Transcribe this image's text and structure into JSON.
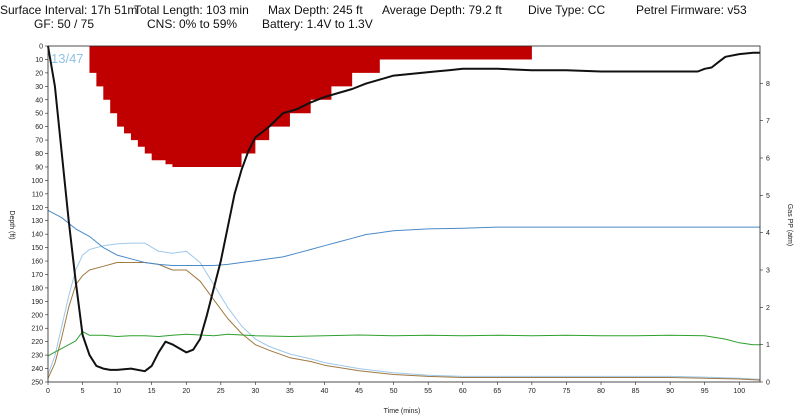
{
  "header": {
    "surface_interval": "Surface Interval: 17h 51m",
    "gf": "GF: 50 / 75",
    "total_length": "Total Length: 103 min",
    "cns": "CNS: 0% to 59%",
    "max_depth": "Max Depth: 245 ft",
    "battery": "Battery: 1.4V to 1.3V",
    "average_depth": "Average Depth: 79.2 ft",
    "dive_type": "Dive Type: CC",
    "firmware": "Petrel Firmware: v53"
  },
  "chart_data": {
    "type": "line",
    "xlabel": "Time (mins)",
    "ylabel_left": "Depth (ft)",
    "ylabel_right": "Gas PP (atm)",
    "xlim": [
      0,
      103
    ],
    "ylim_left": [
      250,
      0
    ],
    "ylim_right": [
      0,
      9
    ],
    "x_ticks": [
      0,
      5,
      10,
      15,
      20,
      25,
      30,
      35,
      40,
      45,
      50,
      55,
      60,
      65,
      70,
      75,
      80,
      85,
      90,
      95,
      100
    ],
    "y_ticks_left": [
      0,
      10,
      20,
      30,
      40,
      50,
      60,
      70,
      80,
      90,
      100,
      110,
      120,
      130,
      140,
      150,
      160,
      170,
      180,
      190,
      200,
      210,
      220,
      230,
      240,
      250
    ],
    "y_ticks_right": [
      0,
      1,
      2,
      3,
      4,
      5,
      6,
      7,
      8
    ],
    "gf_label": "13/47",
    "colors": {
      "depth": "#111111",
      "ceiling": "#c00000",
      "ppo2_blue": "#4a8ac8",
      "green": "#2ea02e",
      "brown": "#a07840",
      "lightblue": "#9ec8ea"
    },
    "series": [
      {
        "key": "depth",
        "axis": "left",
        "x": [
          0,
          1,
          2,
          3,
          4,
          5,
          6,
          7,
          8,
          9,
          10,
          12,
          14,
          15,
          16,
          17,
          18,
          19,
          20,
          21,
          22,
          23,
          24,
          25,
          26,
          27,
          28,
          29,
          30,
          31,
          32,
          33,
          34,
          36,
          38,
          40,
          42,
          44,
          46,
          48,
          50,
          52,
          54,
          56,
          58,
          60,
          65,
          70,
          75,
          80,
          85,
          90,
          94,
          95,
          96,
          97,
          98,
          100,
          102,
          103
        ],
        "y": [
          0,
          30,
          80,
          130,
          175,
          215,
          230,
          238,
          240,
          241,
          241,
          240,
          242,
          238,
          228,
          220,
          222,
          225,
          228,
          226,
          218,
          200,
          180,
          160,
          135,
          110,
          92,
          78,
          68,
          64,
          60,
          55,
          50,
          47,
          42,
          38,
          35,
          32,
          28,
          25,
          22,
          21,
          20,
          19,
          18,
          17,
          17,
          18,
          18,
          19,
          19,
          19,
          19,
          17,
          16,
          12,
          8,
          6,
          5,
          5
        ]
      },
      {
        "key": "ppo2_blue",
        "axis": "right",
        "x": [
          0,
          2,
          4,
          6,
          8,
          10,
          12,
          14,
          16,
          18,
          20,
          22,
          24,
          26,
          28,
          30,
          32,
          34,
          36,
          38,
          40,
          42,
          44,
          46,
          48,
          50,
          55,
          60,
          65,
          70,
          75,
          80,
          85,
          90,
          95,
          100,
          103
        ],
        "y": [
          4.6,
          4.4,
          4.1,
          3.9,
          3.6,
          3.4,
          3.3,
          3.2,
          3.15,
          3.12,
          3.12,
          3.12,
          3.12,
          3.15,
          3.2,
          3.25,
          3.3,
          3.35,
          3.45,
          3.55,
          3.65,
          3.75,
          3.85,
          3.95,
          4.0,
          4.05,
          4.1,
          4.12,
          4.15,
          4.15,
          4.15,
          4.15,
          4.15,
          4.15,
          4.15,
          4.15,
          4.15
        ]
      },
      {
        "key": "green",
        "axis": "right",
        "x": [
          0,
          1,
          2,
          3,
          4,
          5,
          6,
          8,
          10,
          12,
          14,
          16,
          18,
          20,
          22,
          24,
          26,
          28,
          30,
          35,
          40,
          45,
          50,
          55,
          60,
          65,
          70,
          75,
          80,
          85,
          90,
          95,
          98,
          100,
          102,
          103
        ],
        "y": [
          0.7,
          0.8,
          0.9,
          1.0,
          1.1,
          1.35,
          1.25,
          1.25,
          1.22,
          1.24,
          1.24,
          1.22,
          1.25,
          1.28,
          1.26,
          1.24,
          1.28,
          1.26,
          1.24,
          1.22,
          1.24,
          1.26,
          1.24,
          1.25,
          1.24,
          1.25,
          1.24,
          1.25,
          1.24,
          1.24,
          1.25,
          1.24,
          1.15,
          1.05,
          1.0,
          1.0
        ]
      },
      {
        "key": "brown",
        "axis": "right",
        "x": [
          0,
          1,
          2,
          3,
          4,
          5,
          6,
          8,
          10,
          12,
          14,
          16,
          18,
          20,
          22,
          24,
          26,
          28,
          30,
          32,
          35,
          38,
          40,
          45,
          50,
          55,
          60,
          65,
          70,
          75,
          80,
          85,
          90,
          95,
          100,
          103
        ],
        "y": [
          0.1,
          0.5,
          1.2,
          2.0,
          2.6,
          2.85,
          3.0,
          3.1,
          3.2,
          3.2,
          3.2,
          3.15,
          3.0,
          3.0,
          2.7,
          2.2,
          1.7,
          1.3,
          1.0,
          0.85,
          0.65,
          0.55,
          0.45,
          0.3,
          0.2,
          0.15,
          0.12,
          0.12,
          0.12,
          0.12,
          0.12,
          0.12,
          0.12,
          0.1,
          0.08,
          0.05
        ]
      },
      {
        "key": "lightblue",
        "axis": "right",
        "x": [
          0,
          1,
          2,
          3,
          4,
          5,
          6,
          8,
          10,
          12,
          14,
          16,
          18,
          20,
          22,
          24,
          26,
          28,
          30,
          32,
          35,
          38,
          40,
          45,
          50,
          55,
          60,
          65,
          70,
          75,
          80,
          85,
          90,
          95,
          100,
          103
        ],
        "y": [
          0.2,
          0.7,
          1.5,
          2.3,
          3.0,
          3.4,
          3.55,
          3.65,
          3.7,
          3.72,
          3.72,
          3.5,
          3.45,
          3.5,
          3.2,
          2.6,
          2.0,
          1.5,
          1.15,
          0.95,
          0.75,
          0.62,
          0.52,
          0.36,
          0.25,
          0.18,
          0.15,
          0.15,
          0.15,
          0.15,
          0.15,
          0.15,
          0.15,
          0.13,
          0.1,
          0.07
        ]
      }
    ],
    "ceiling": {
      "x": [
        5,
        6,
        7,
        8,
        9,
        10,
        11,
        12,
        13,
        14,
        15,
        16,
        17,
        18,
        19,
        20,
        21,
        22,
        23,
        24,
        25,
        26,
        27,
        28,
        29,
        30,
        31,
        32,
        33,
        34,
        35,
        36,
        37,
        38,
        39,
        40,
        41,
        42,
        43,
        44,
        45,
        46,
        47,
        48,
        49,
        50,
        51,
        52,
        53,
        54,
        55,
        56,
        57,
        58,
        59,
        60,
        61,
        62,
        63,
        64,
        65,
        66,
        67,
        68,
        69,
        70,
        75,
        80,
        85,
        90,
        95,
        95.5
      ],
      "y": [
        0,
        20,
        30,
        40,
        50,
        60,
        65,
        70,
        75,
        80,
        85,
        85,
        88,
        90,
        90,
        90,
        90,
        90,
        90,
        90,
        90,
        90,
        90,
        80,
        80,
        70,
        70,
        60,
        60,
        60,
        50,
        50,
        50,
        40,
        40,
        40,
        30,
        30,
        30,
        20,
        20,
        20,
        20,
        10,
        10,
        10,
        10,
        10,
        10,
        10,
        10,
        10,
        10,
        10,
        10,
        10,
        10,
        10,
        10,
        10,
        10,
        10,
        10,
        10,
        10,
        0,
        0,
        0,
        0,
        0,
        0,
        0
      ]
    }
  }
}
